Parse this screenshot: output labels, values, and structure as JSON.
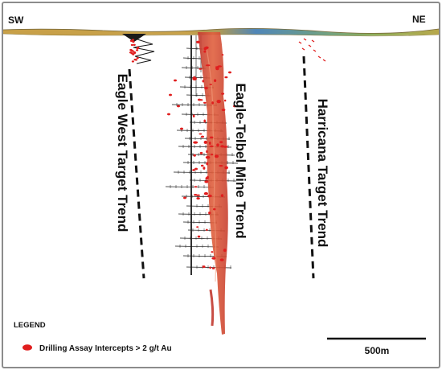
{
  "compass": {
    "left": "SW",
    "right": "NE"
  },
  "trends": [
    {
      "id": "eagle-west",
      "label": "Eagle West Target Trend"
    },
    {
      "id": "eagle-telbel",
      "label": "Eagle-Telbel Mine Trend"
    },
    {
      "id": "harricana",
      "label": "Harricana Target Trend"
    }
  ],
  "legend": {
    "title": "LEGEND",
    "items": [
      {
        "label": "Drilling Assay Intercepts > 2 g/t Au",
        "color": "#e01e1e"
      }
    ]
  },
  "scale_bar": {
    "label": "500m"
  },
  "colors": {
    "frame": "#8c8c8c",
    "assay": "#e01e1e",
    "ore_body": "#d9483a",
    "surface_gold": "#c9a24a",
    "surface_blue": "#4f86b8",
    "surface_green": "#8db05a"
  }
}
